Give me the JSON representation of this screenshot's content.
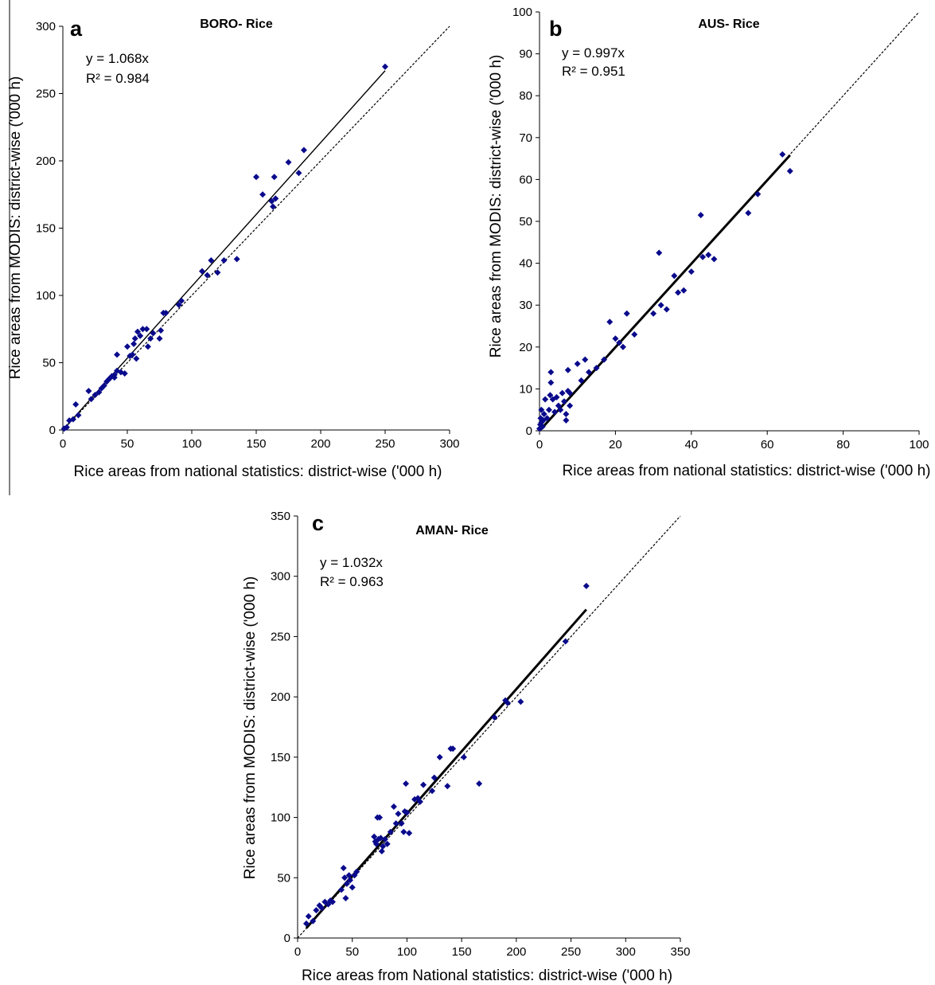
{
  "chart_data": [
    {
      "type": "scatter",
      "panel_label": "a",
      "title": "BORO- Rice",
      "xlabel": "Rice areas from national statistics: district-wise ('000 h)",
      "ylabel": "Rice areas from MODIS: district-wise ('000 h)",
      "xlim": [
        0,
        300
      ],
      "ylim": [
        0,
        300
      ],
      "xticks": [
        "0",
        "50",
        "100",
        "150",
        "200",
        "250",
        "300"
      ],
      "yticks": [
        "0",
        "50",
        "100",
        "150",
        "200",
        "250",
        "300"
      ],
      "equation": "y = 1.068x",
      "r2": "R² = 0.984",
      "fit_slope": 1.068,
      "fit_x_range": [
        0,
        250
      ],
      "fit_style": "thin",
      "grid": false,
      "marker_color": "#0a0a8c",
      "points": [
        [
          1,
          1
        ],
        [
          3,
          2
        ],
        [
          5,
          7
        ],
        [
          8,
          8
        ],
        [
          10,
          19
        ],
        [
          12,
          11
        ],
        [
          20,
          29
        ],
        [
          22,
          23
        ],
        [
          25,
          26
        ],
        [
          28,
          28
        ],
        [
          30,
          31
        ],
        [
          32,
          33
        ],
        [
          34,
          36
        ],
        [
          36,
          38
        ],
        [
          38,
          40
        ],
        [
          40,
          41
        ],
        [
          40,
          39
        ],
        [
          42,
          56
        ],
        [
          42,
          44
        ],
        [
          45,
          43
        ],
        [
          48,
          42
        ],
        [
          50,
          62
        ],
        [
          52,
          55
        ],
        [
          54,
          56
        ],
        [
          55,
          64
        ],
        [
          56,
          68
        ],
        [
          57,
          53
        ],
        [
          58,
          73
        ],
        [
          60,
          70
        ],
        [
          62,
          75
        ],
        [
          65,
          75
        ],
        [
          66,
          62
        ],
        [
          68,
          68
        ],
        [
          70,
          72
        ],
        [
          75,
          68
        ],
        [
          76,
          74
        ],
        [
          78,
          87
        ],
        [
          80,
          87
        ],
        [
          90,
          93
        ],
        [
          92,
          96
        ],
        [
          108,
          118
        ],
        [
          112,
          115
        ],
        [
          115,
          126
        ],
        [
          120,
          117
        ],
        [
          125,
          126
        ],
        [
          135,
          127
        ],
        [
          150,
          188
        ],
        [
          155,
          175
        ],
        [
          162,
          170
        ],
        [
          163,
          166
        ],
        [
          164,
          188
        ],
        [
          165,
          172
        ],
        [
          175,
          199
        ],
        [
          183,
          191
        ],
        [
          187,
          208
        ],
        [
          250,
          270
        ]
      ]
    },
    {
      "type": "scatter",
      "panel_label": "b",
      "title": "AUS- Rice",
      "xlabel": "Rice areas from national statistics: district-wise ('000 h)",
      "ylabel": "Rice areas from MODIS: district-wise ('000 h)",
      "xlim": [
        0,
        100
      ],
      "ylim": [
        0,
        100
      ],
      "xticks": [
        "0",
        "20",
        "40",
        "60",
        "80",
        "100"
      ],
      "yticks": [
        "0",
        "10",
        "20",
        "30",
        "40",
        "50",
        "60",
        "70",
        "80",
        "90",
        "100"
      ],
      "equation": "y = 0.997x",
      "r2": "R² = 0.951",
      "fit_slope": 0.997,
      "fit_x_range": [
        0,
        66
      ],
      "fit_style": "thick",
      "grid": false,
      "marker_color": "#0a0a8c",
      "points": [
        [
          0,
          0.5
        ],
        [
          0.2,
          1.5
        ],
        [
          0.3,
          3
        ],
        [
          0.5,
          2
        ],
        [
          0.5,
          5
        ],
        [
          0.8,
          1
        ],
        [
          1,
          2.5
        ],
        [
          1.2,
          4
        ],
        [
          1.5,
          7.5
        ],
        [
          2,
          3
        ],
        [
          2.5,
          5
        ],
        [
          2.8,
          8.5
        ],
        [
          3,
          14
        ],
        [
          3,
          11.5
        ],
        [
          3.5,
          7.5
        ],
        [
          4,
          4.5
        ],
        [
          4.5,
          8
        ],
        [
          5,
          6
        ],
        [
          5.5,
          5
        ],
        [
          6,
          9
        ],
        [
          6.5,
          7
        ],
        [
          7,
          4
        ],
        [
          7,
          2.5
        ],
        [
          7.5,
          14.5
        ],
        [
          7.5,
          9.5
        ],
        [
          8,
          9
        ],
        [
          8,
          6
        ],
        [
          10,
          16
        ],
        [
          11,
          12
        ],
        [
          12,
          17
        ],
        [
          13,
          14
        ],
        [
          15,
          15
        ],
        [
          17,
          17
        ],
        [
          18.5,
          26
        ],
        [
          20,
          22
        ],
        [
          21,
          21
        ],
        [
          22,
          20
        ],
        [
          23,
          28
        ],
        [
          25,
          23
        ],
        [
          30,
          28
        ],
        [
          31.5,
          42.5
        ],
        [
          32,
          30
        ],
        [
          33.5,
          29
        ],
        [
          35.5,
          37
        ],
        [
          36.5,
          33
        ],
        [
          38,
          33.5
        ],
        [
          40,
          38
        ],
        [
          42.5,
          51.5
        ],
        [
          43,
          41.5
        ],
        [
          44.5,
          42
        ],
        [
          46,
          41
        ],
        [
          55,
          52
        ],
        [
          57.5,
          56.5
        ],
        [
          64,
          66
        ],
        [
          66,
          62
        ]
      ]
    },
    {
      "type": "scatter",
      "panel_label": "c",
      "title": "AMAN- Rice",
      "xlabel": "Rice areas from National statistics: district-wise ('000 h)",
      "ylabel": "Rice areas from MODIS: district-wise ('000 h)",
      "xlim": [
        0,
        350
      ],
      "ylim": [
        0,
        350
      ],
      "xticks": [
        "0",
        "50",
        "100",
        "150",
        "200",
        "250",
        "300",
        "350"
      ],
      "yticks": [
        "0",
        "50",
        "100",
        "150",
        "200",
        "250",
        "300",
        "350"
      ],
      "equation": "y = 1.032x",
      "r2": "R² = 0.963",
      "fit_slope": 1.032,
      "fit_x_range": [
        8,
        264
      ],
      "fit_style": "thick",
      "grid": false,
      "marker_color": "#0a0a8c",
      "points": [
        [
          8,
          12
        ],
        [
          10,
          18
        ],
        [
          14,
          14
        ],
        [
          17,
          23
        ],
        [
          20,
          27
        ],
        [
          22,
          25
        ],
        [
          25,
          30
        ],
        [
          28,
          28
        ],
        [
          30,
          31
        ],
        [
          32,
          30
        ],
        [
          40,
          40
        ],
        [
          42,
          58
        ],
        [
          43,
          50
        ],
        [
          44,
          33
        ],
        [
          45,
          45
        ],
        [
          47,
          52
        ],
        [
          48,
          48
        ],
        [
          50,
          42
        ],
        [
          52,
          52
        ],
        [
          54,
          55
        ],
        [
          70,
          84
        ],
        [
          71,
          80
        ],
        [
          72,
          78
        ],
        [
          73,
          100
        ],
        [
          74,
          82
        ],
        [
          75,
          100
        ],
        [
          76,
          83
        ],
        [
          77,
          72
        ],
        [
          78,
          76
        ],
        [
          80,
          82
        ],
        [
          82,
          78
        ],
        [
          85,
          88
        ],
        [
          88,
          109
        ],
        [
          90,
          95
        ],
        [
          92,
          103
        ],
        [
          95,
          95
        ],
        [
          97,
          88
        ],
        [
          98,
          105
        ],
        [
          99,
          128
        ],
        [
          100,
          104
        ],
        [
          102,
          87
        ],
        [
          107,
          115
        ],
        [
          110,
          116
        ],
        [
          112,
          113
        ],
        [
          115,
          127
        ],
        [
          123,
          122
        ],
        [
          125,
          133
        ],
        [
          130,
          150
        ],
        [
          137,
          126
        ],
        [
          140,
          157
        ],
        [
          142,
          157
        ],
        [
          152,
          150
        ],
        [
          166,
          128
        ],
        [
          180,
          183
        ],
        [
          190,
          197
        ],
        [
          192,
          195
        ],
        [
          204,
          196
        ],
        [
          245,
          246
        ],
        [
          264,
          292
        ]
      ]
    }
  ]
}
